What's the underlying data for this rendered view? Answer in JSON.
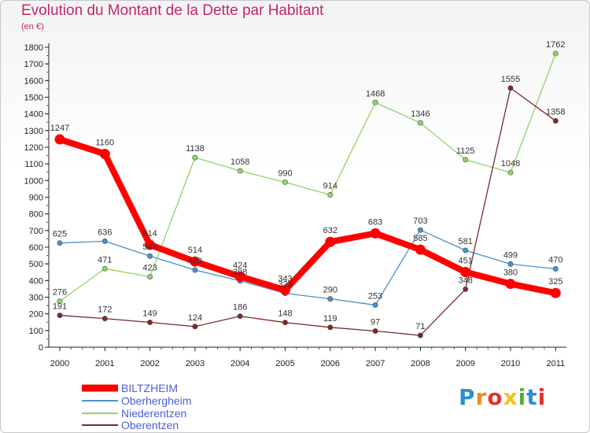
{
  "header": {
    "title": "Evolution du Montant de la Dette par Habitant",
    "subtitle": "(en €)"
  },
  "logo": {
    "text": "Proxiti",
    "colors": [
      "#2e8fd0",
      "#f08a1c",
      "#e8302a",
      "#f2c31b",
      "#4fb13a",
      "#2e8fd0",
      "#e8302a"
    ]
  },
  "chart_data": {
    "type": "line",
    "title": "Evolution du Montant de la Dette par Habitant",
    "ylabel": "(en €)",
    "xlabel": "",
    "x": [
      "2000",
      "2001",
      "2002",
      "2003",
      "2004",
      "2005",
      "2006",
      "2007",
      "2008",
      "2009",
      "2010",
      "2011"
    ],
    "ylim": [
      0,
      1800
    ],
    "yticks": [
      0,
      100,
      200,
      300,
      400,
      500,
      600,
      700,
      800,
      900,
      1000,
      1100,
      1200,
      1300,
      1400,
      1500,
      1600,
      1700,
      1800
    ],
    "grid": false,
    "legend": "bottom-left",
    "series": [
      {
        "name": "BILTZHEIM",
        "color": "#ff0000",
        "values": [
          1247,
          1160,
          614,
          514,
          424,
          343,
          632,
          683,
          585,
          451,
          380,
          325
        ]
      },
      {
        "name": "Oberhergheim",
        "color": "#4a90c8",
        "values": [
          625,
          636,
          547,
          463,
          398,
          323,
          290,
          253,
          703,
          581,
          499,
          470
        ]
      },
      {
        "name": "Niederentzen",
        "color": "#8fd467",
        "values": [
          276,
          471,
          423,
          1138,
          1058,
          990,
          914,
          1468,
          1346,
          1125,
          1048,
          1762
        ]
      },
      {
        "name": "Oberentzen",
        "color": "#7a2a2a",
        "values": [
          191,
          172,
          149,
          124,
          186,
          148,
          119,
          97,
          71,
          348,
          1555,
          1358
        ]
      }
    ]
  }
}
